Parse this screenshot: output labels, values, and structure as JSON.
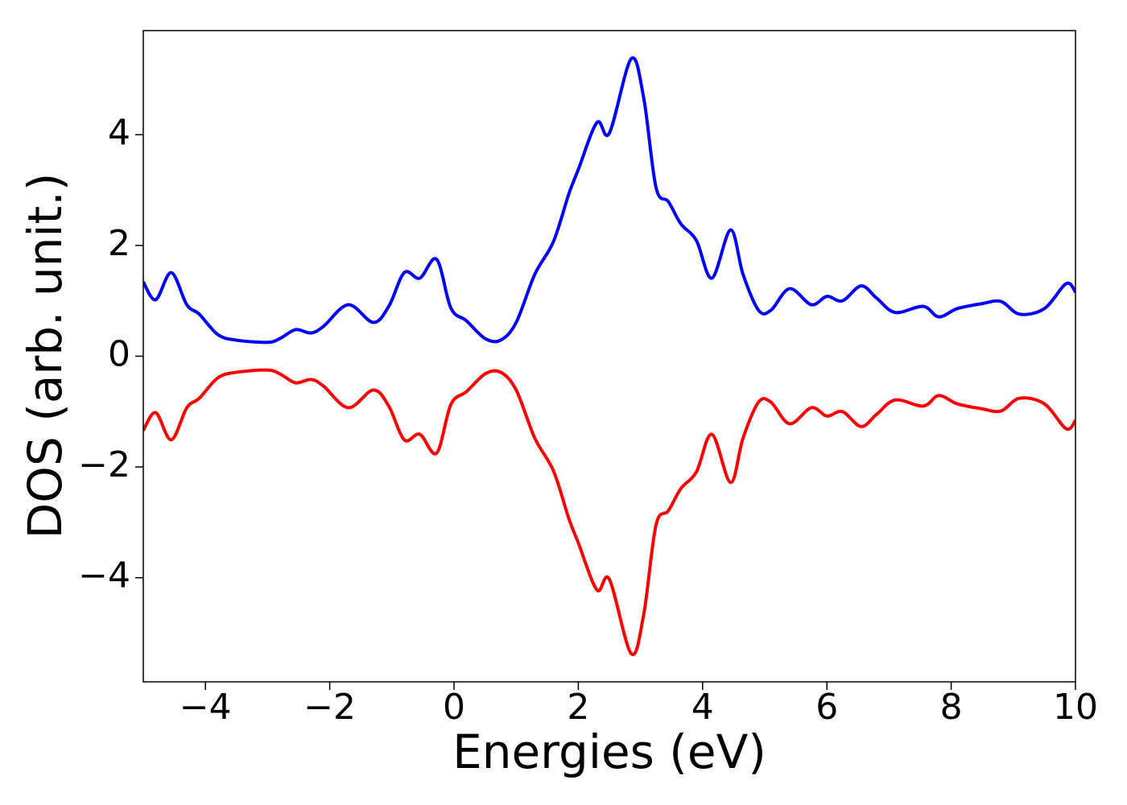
{
  "chart_data": {
    "type": "line",
    "xlabel": "Energies (eV)",
    "ylabel": "DOS (arb. unit.)",
    "x": [
      -5,
      -4.8,
      -4.55,
      -4.3,
      -4.1,
      -3.8,
      -3.5,
      -3.0,
      -2.8,
      -2.55,
      -2.3,
      -2.1,
      -1.7,
      -1.3,
      -1.05,
      -0.8,
      -0.55,
      -0.28,
      -0.05,
      0.2,
      0.5,
      0.75,
      1.0,
      1.3,
      1.6,
      1.85,
      2.0,
      2.3,
      2.5,
      2.85,
      3.05,
      3.25,
      3.45,
      3.65,
      3.9,
      4.15,
      4.45,
      4.65,
      4.9,
      5.1,
      5.4,
      5.75,
      6.0,
      6.25,
      6.55,
      6.8,
      7.1,
      7.55,
      7.8,
      8.1,
      8.5,
      8.8,
      9.1,
      9.5,
      9.85,
      10.0
    ],
    "series": [
      {
        "color": "#0000ff",
        "values": [
          1.34,
          1.02,
          1.51,
          0.93,
          0.76,
          0.39,
          0.29,
          0.25,
          0.32,
          0.48,
          0.42,
          0.54,
          0.93,
          0.61,
          0.9,
          1.51,
          1.41,
          1.75,
          0.87,
          0.64,
          0.32,
          0.29,
          0.61,
          1.48,
          2.07,
          2.94,
          3.37,
          4.22,
          4.03,
          5.37,
          4.68,
          3.05,
          2.79,
          2.39,
          2.09,
          1.41,
          2.28,
          1.48,
          0.83,
          0.83,
          1.22,
          0.93,
          1.08,
          1.0,
          1.27,
          1.05,
          0.79,
          0.9,
          0.71,
          0.86,
          0.95,
          0.99,
          0.76,
          0.86,
          1.31,
          1.16
        ]
      },
      {
        "color": "#ff0000",
        "values": [
          -1.34,
          -1.02,
          -1.51,
          -0.93,
          -0.76,
          -0.39,
          -0.29,
          -0.25,
          -0.32,
          -0.48,
          -0.42,
          -0.54,
          -0.93,
          -0.61,
          -0.9,
          -1.51,
          -1.41,
          -1.75,
          -0.87,
          -0.64,
          -0.32,
          -0.29,
          -0.61,
          -1.48,
          -2.07,
          -2.94,
          -3.37,
          -4.22,
          -4.03,
          -5.37,
          -4.68,
          -3.05,
          -2.79,
          -2.39,
          -2.09,
          -1.41,
          -2.28,
          -1.48,
          -0.83,
          -0.83,
          -1.22,
          -0.93,
          -1.08,
          -1.0,
          -1.27,
          -1.05,
          -0.79,
          -0.9,
          -0.71,
          -0.86,
          -0.95,
          -0.99,
          -0.76,
          -0.86,
          -1.31,
          -1.16
        ]
      }
    ],
    "xlim": [
      -5,
      10
    ],
    "xticks": [
      {
        "value": -4,
        "label": "−4"
      },
      {
        "value": -2,
        "label": "−2"
      },
      0,
      2,
      4,
      6,
      8,
      10
    ],
    "ylim": [
      -5.88,
      5.88
    ],
    "yticks": [
      {
        "value": -4,
        "label": "−4"
      },
      {
        "value": -2,
        "label": "−2"
      },
      0,
      2,
      4
    ],
    "grid": false
  }
}
